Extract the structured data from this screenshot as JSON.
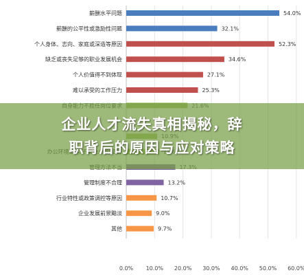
{
  "chart_data": {
    "type": "bar",
    "orientation": "horizontal",
    "categories": [
      "薪酬水平问题",
      "薪酬的公平性或激励性问题",
      "个人身体、志向、家庭或深造等原因",
      "缺乏或丧失足够的职业发展机会",
      "个人价值得不到体现",
      "难以承受的工作压力",
      "自身能力不胜任岗位要求",
      "",
      "",
      "办公环境恶劣/不安全/不舒适等",
      "管理方法不当",
      "管理制度不合理",
      "行业特性或政策调控等原因",
      "企业发展前景黯淡",
      "其他"
    ],
    "values": [
      54.0,
      32.1,
      52.3,
      34.6,
      27.1,
      25.3,
      21.6,
      null,
      10.9,
      11.6,
      17.3,
      13.2,
      10.7,
      9.0,
      9.7
    ],
    "value_labels": [
      "54.0%",
      "32.1%",
      "52.3%",
      "34.6%",
      "27.1%",
      "25.3%",
      "21.6%",
      "",
      "10.9%",
      "11.6%",
      "17.3%",
      "13.2%",
      "10.7%",
      "9.0%",
      "9.7%"
    ],
    "colors": [
      "#4a7dbd",
      "#4a7dbd",
      "#c0504d",
      "#c0504d",
      "#c0504d",
      "#c0504d",
      "#9bbb59",
      "#9bbb59",
      "#9bbb59",
      "#9bbb59",
      "#8064a2",
      "#8064a2",
      "#f79646",
      "#f79646",
      "#f79646"
    ],
    "x_ticks": [
      "0.0%",
      "10.0%",
      "20.0%",
      "30.0%",
      "40.0%",
      "50.0%",
      "60.0%"
    ],
    "xlim": [
      0,
      60
    ],
    "grid": true
  },
  "banner": {
    "line1": "企业人才流失真相揭秘，辞",
    "line2": "职背后的原因与应对策略"
  }
}
